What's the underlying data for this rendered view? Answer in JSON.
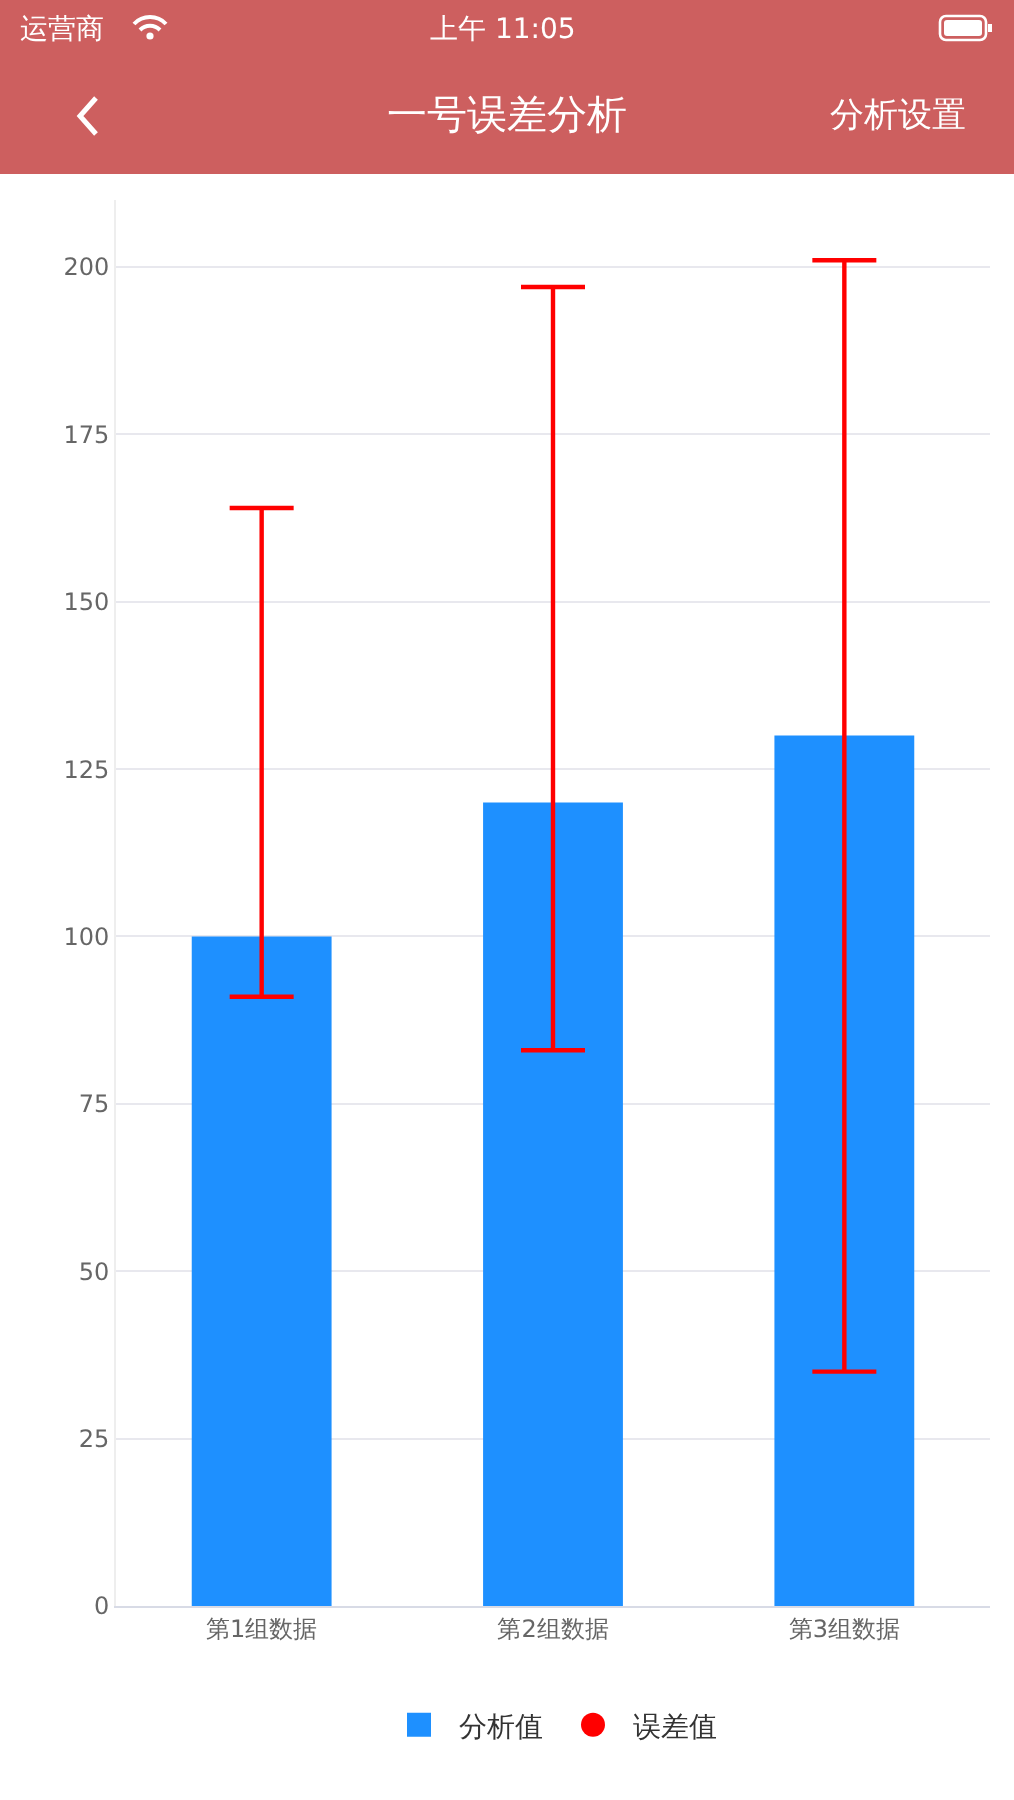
{
  "chart_data": {
    "type": "bar",
    "title": "一号误差分析",
    "annotations": [
      "运营商",
      "上午 11:05",
      "分析设置"
    ],
    "categories": [
      "第1组数据",
      "第2组数据",
      "第3组数据"
    ],
    "series": [
      {
        "name": "分析值",
        "color": "#1e90ff",
        "values": [
          100,
          120,
          130
        ],
        "errors": [
          [
            91,
            164
          ],
          [
            83,
            197
          ],
          [
            35,
            201
          ]
        ]
      },
      {
        "name": "误差值",
        "type": "scatter",
        "color": "#ff0000",
        "values": [
          null,
          null,
          null
        ]
      }
    ],
    "ylim": [
      0,
      210
    ],
    "yticks": [
      0,
      25,
      50,
      75,
      100,
      125,
      150,
      175,
      200
    ],
    "grid": "y",
    "legend": "bottom"
  }
}
